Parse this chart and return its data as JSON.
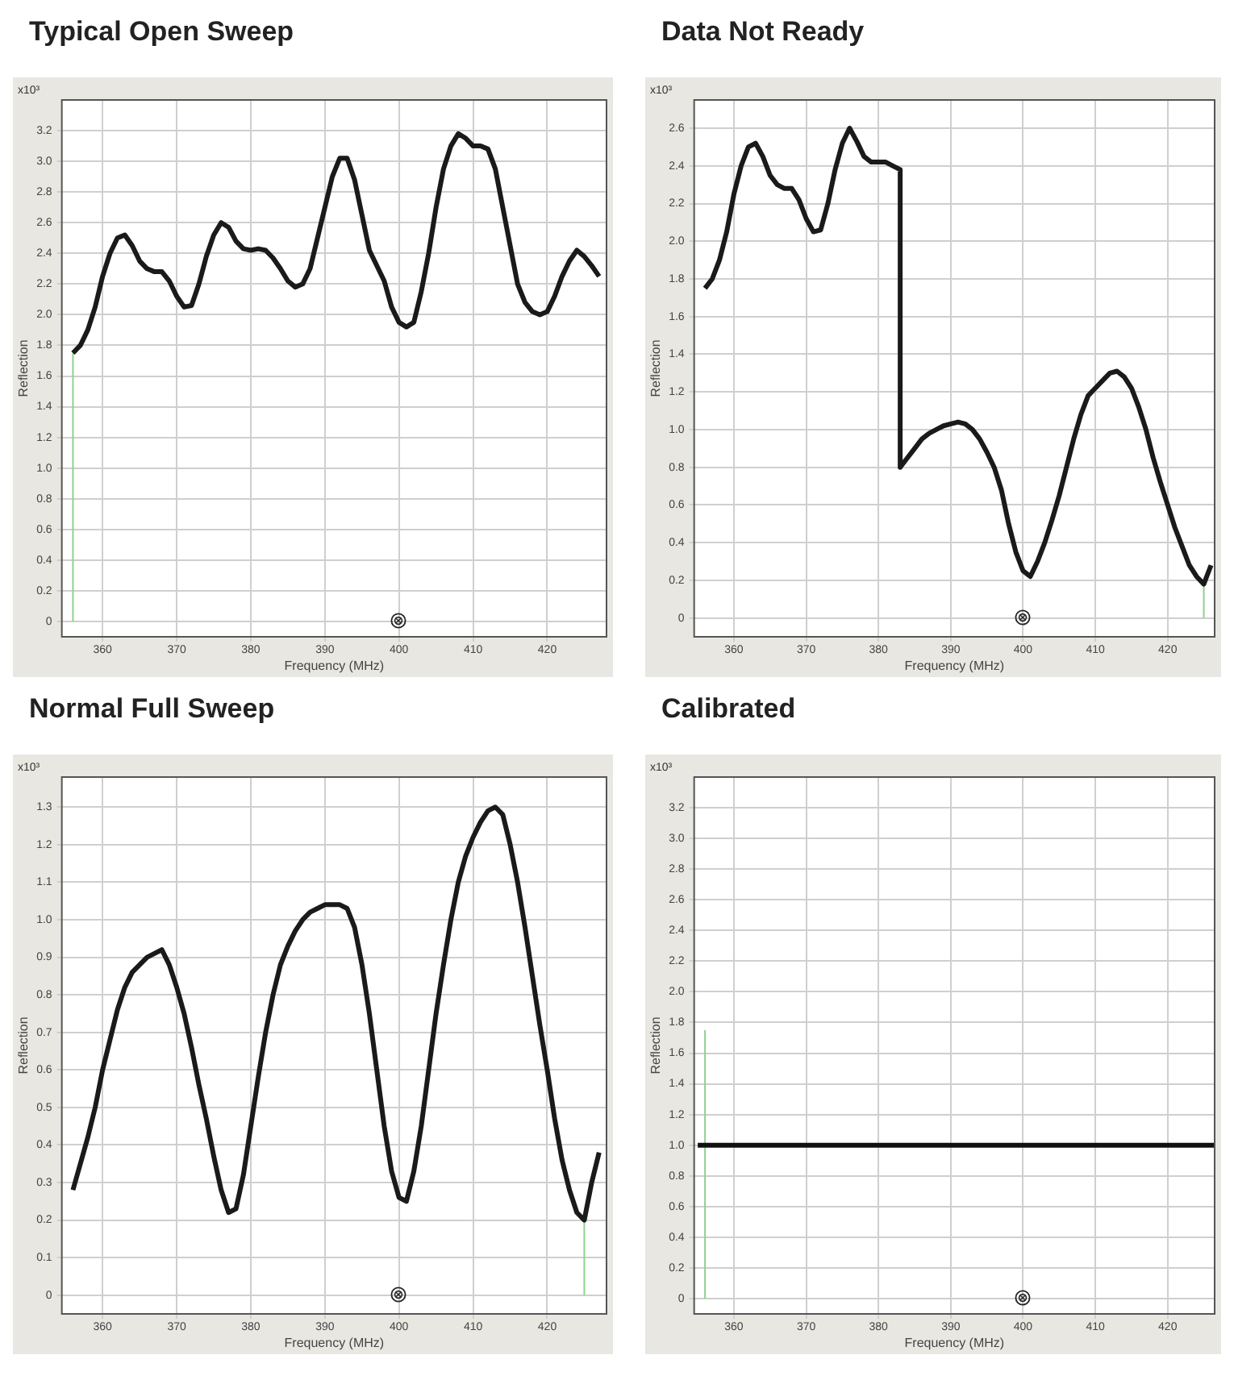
{
  "chart_data": [
    {
      "type": "line",
      "title": "Typical Open Sweep",
      "xlabel": "Frequency (MHz)",
      "ylabel": "Reflection",
      "annotations": [
        "x10³"
      ],
      "xlim": [
        354.5,
        428
      ],
      "xticks": [
        360,
        370,
        380,
        390,
        400,
        410,
        420
      ],
      "ylim": [
        -0.1,
        3.4
      ],
      "yticks": [
        0,
        0.2,
        0.4,
        0.6,
        0.8,
        {
          "value": 1,
          "label": "1.0"
        },
        1.2,
        1.4,
        1.6,
        1.8,
        {
          "value": 2,
          "label": "2.0"
        },
        2.2,
        2.4,
        2.6,
        2.8,
        {
          "value": 3,
          "label": "3.0"
        },
        3.2
      ],
      "grid": true,
      "series": [
        {
          "color": "#1a1a1a",
          "x": [
            356,
            357,
            358,
            359,
            360,
            361,
            362,
            363,
            364,
            365,
            366,
            367,
            368,
            369,
            370,
            371,
            372,
            373,
            374,
            375,
            376,
            377,
            378,
            379,
            380,
            381,
            382,
            383,
            384,
            385,
            386,
            387,
            388,
            389,
            390,
            391,
            392,
            393,
            394,
            395,
            396,
            397,
            398,
            399,
            400,
            401,
            402,
            403,
            404,
            405,
            406,
            407,
            408,
            409,
            410,
            411,
            412,
            413,
            414,
            415,
            416,
            417,
            418,
            419,
            420,
            421,
            422,
            423,
            424,
            425,
            426,
            427
          ],
          "values": [
            1.75,
            1.8,
            1.9,
            2.05,
            2.25,
            2.4,
            2.5,
            2.52,
            2.45,
            2.35,
            2.3,
            2.28,
            2.28,
            2.22,
            2.12,
            2.05,
            2.06,
            2.2,
            2.38,
            2.52,
            2.6,
            2.57,
            2.48,
            2.43,
            2.42,
            2.43,
            2.42,
            2.37,
            2.3,
            2.22,
            2.18,
            2.2,
            2.3,
            2.5,
            2.7,
            2.9,
            3.02,
            3.02,
            2.88,
            2.65,
            2.42,
            2.32,
            2.22,
            2.05,
            1.95,
            1.92,
            1.95,
            2.15,
            2.4,
            2.7,
            2.95,
            3.1,
            3.18,
            3.15,
            3.1,
            3.1,
            3.08,
            2.95,
            2.7,
            2.45,
            2.2,
            2.08,
            2.02,
            2.0,
            2.02,
            2.12,
            2.25,
            2.35,
            2.42,
            2.38,
            2.32,
            2.25
          ]
        },
        {
          "color": "#8fd18f",
          "x": [
            356,
            356
          ],
          "values": [
            0,
            1.75
          ]
        }
      ]
    },
    {
      "type": "line",
      "title": "Data Not Ready",
      "xlabel": "Frequency (MHz)",
      "ylabel": "Reflection",
      "annotations": [
        "x10³"
      ],
      "xlim": [
        354.5,
        426.5
      ],
      "xticks": [
        360,
        370,
        380,
        390,
        400,
        410,
        420
      ],
      "ylim": [
        -0.1,
        2.75
      ],
      "yticks": [
        0,
        0.2,
        0.4,
        0.6,
        0.8,
        {
          "value": 1,
          "label": "1.0"
        },
        1.2,
        1.4,
        1.6,
        1.8,
        {
          "value": 2,
          "label": "2.0"
        },
        2.2,
        2.4,
        2.6
      ],
      "grid": true,
      "series": [
        {
          "color": "#1a1a1a",
          "x": [
            356,
            357,
            358,
            359,
            360,
            361,
            362,
            363,
            364,
            365,
            366,
            367,
            368,
            369,
            370,
            371,
            372,
            373,
            374,
            375,
            376,
            377,
            378,
            379,
            380,
            381,
            382,
            383,
            383,
            384,
            385,
            386,
            387,
            388,
            389,
            390,
            391,
            392,
            393,
            394,
            395,
            396,
            397,
            398,
            399,
            400,
            401,
            402,
            403,
            404,
            405,
            406,
            407,
            408,
            409,
            410,
            411,
            412,
            413,
            414,
            415,
            416,
            417,
            418,
            419,
            420,
            421,
            422,
            423,
            424,
            425,
            426
          ],
          "values": [
            1.75,
            1.8,
            1.9,
            2.05,
            2.25,
            2.4,
            2.5,
            2.52,
            2.45,
            2.35,
            2.3,
            2.28,
            2.28,
            2.22,
            2.12,
            2.05,
            2.06,
            2.2,
            2.38,
            2.52,
            2.6,
            2.53,
            2.45,
            2.42,
            2.42,
            2.42,
            2.4,
            2.38,
            0.8,
            0.85,
            0.9,
            0.95,
            0.98,
            1.0,
            1.02,
            1.03,
            1.04,
            1.03,
            1.0,
            0.95,
            0.88,
            0.8,
            0.68,
            0.5,
            0.35,
            0.25,
            0.22,
            0.3,
            0.4,
            0.52,
            0.65,
            0.8,
            0.95,
            1.08,
            1.18,
            1.22,
            1.26,
            1.3,
            1.31,
            1.28,
            1.22,
            1.12,
            1.0,
            0.85,
            0.72,
            0.6,
            0.48,
            0.38,
            0.28,
            0.22,
            0.18,
            0.28
          ]
        },
        {
          "color": "#8fd18f",
          "x": [
            425,
            425
          ],
          "values": [
            0,
            0.18
          ]
        }
      ]
    },
    {
      "type": "line",
      "title": "Normal Full Sweep",
      "xlabel": "Frequency (MHz)",
      "ylabel": "Reflection",
      "annotations": [
        "x10³"
      ],
      "xlim": [
        354.5,
        428
      ],
      "xticks": [
        360,
        370,
        380,
        390,
        400,
        410,
        420
      ],
      "ylim": [
        -0.05,
        1.38
      ],
      "yticks": [
        0,
        0.1,
        0.2,
        0.3,
        0.4,
        0.5,
        0.6,
        0.7,
        0.8,
        0.9,
        {
          "value": 1,
          "label": "1.0"
        },
        1.1,
        1.2,
        1.3
      ],
      "grid": true,
      "series": [
        {
          "color": "#1a1a1a",
          "x": [
            356,
            357,
            358,
            359,
            360,
            361,
            362,
            363,
            364,
            365,
            366,
            367,
            368,
            369,
            370,
            371,
            372,
            373,
            374,
            375,
            376,
            377,
            378,
            379,
            380,
            381,
            382,
            383,
            384,
            385,
            386,
            387,
            388,
            389,
            390,
            391,
            392,
            393,
            394,
            395,
            396,
            397,
            398,
            399,
            400,
            401,
            402,
            403,
            404,
            405,
            406,
            407,
            408,
            409,
            410,
            411,
            412,
            413,
            414,
            415,
            416,
            417,
            418,
            419,
            420,
            421,
            422,
            423,
            424,
            425,
            426,
            427
          ],
          "values": [
            0.28,
            0.35,
            0.42,
            0.5,
            0.6,
            0.68,
            0.76,
            0.82,
            0.86,
            0.88,
            0.9,
            0.91,
            0.92,
            0.88,
            0.82,
            0.75,
            0.66,
            0.56,
            0.47,
            0.37,
            0.28,
            0.22,
            0.23,
            0.32,
            0.45,
            0.58,
            0.7,
            0.8,
            0.88,
            0.93,
            0.97,
            1.0,
            1.02,
            1.03,
            1.04,
            1.04,
            1.04,
            1.03,
            0.98,
            0.88,
            0.75,
            0.6,
            0.45,
            0.33,
            0.26,
            0.25,
            0.33,
            0.45,
            0.6,
            0.75,
            0.88,
            1.0,
            1.1,
            1.17,
            1.22,
            1.26,
            1.29,
            1.3,
            1.28,
            1.2,
            1.1,
            0.98,
            0.85,
            0.72,
            0.6,
            0.47,
            0.36,
            0.28,
            0.22,
            0.2,
            0.3,
            0.38
          ]
        },
        {
          "color": "#8fd18f",
          "x": [
            425,
            425
          ],
          "values": [
            0,
            0.2
          ]
        }
      ]
    },
    {
      "type": "line",
      "title": "Calibrated",
      "xlabel": "Frequency (MHz)",
      "ylabel": "Reflection",
      "annotations": [
        "x10³"
      ],
      "xlim": [
        354.5,
        426.5
      ],
      "xticks": [
        360,
        370,
        380,
        390,
        400,
        410,
        420
      ],
      "ylim": [
        -0.1,
        3.4
      ],
      "yticks": [
        0,
        0.2,
        0.4,
        0.6,
        0.8,
        {
          "value": 1,
          "label": "1.0"
        },
        1.2,
        1.4,
        1.6,
        1.8,
        {
          "value": 2,
          "label": "2.0"
        },
        2.2,
        2.4,
        2.6,
        2.8,
        {
          "value": 3,
          "label": "3.0"
        },
        3.2
      ],
      "grid": true,
      "series": [
        {
          "color": "#111111",
          "x": [
            355,
            426.5
          ],
          "values": [
            1.0,
            1.0
          ]
        },
        {
          "color": "#8fd18f",
          "x": [
            356,
            356
          ],
          "values": [
            0,
            1.75
          ]
        }
      ]
    }
  ]
}
